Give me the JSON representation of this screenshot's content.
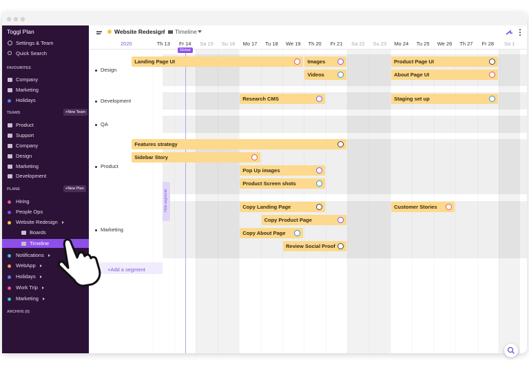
{
  "sidebar": {
    "app_title": "Toggl Plan",
    "settings": "Settings & Team",
    "search": "Quick Search",
    "favourites": {
      "heading": "FAVOURITES",
      "items": [
        {
          "label": "Company"
        },
        {
          "label": "Marketing"
        },
        {
          "label": "Holidays",
          "color": "#5b7ff0"
        }
      ]
    },
    "teams": {
      "heading": "TEAMS",
      "button": "+New Team",
      "items": [
        {
          "label": "Product"
        },
        {
          "label": "Support"
        },
        {
          "label": "Company"
        },
        {
          "label": "Design"
        },
        {
          "label": "Marketing"
        },
        {
          "label": "Development"
        }
      ]
    },
    "plans": {
      "heading": "PLANS",
      "button": "+New Plan",
      "items": [
        {
          "label": "Hiring",
          "color": "#e8578c"
        },
        {
          "label": "People Ops",
          "color": "#8b4fe0"
        },
        {
          "label": "Website Redesign",
          "color": "#f6c64a"
        },
        {
          "label": "Boards"
        },
        {
          "label": "Timeline"
        },
        {
          "label": "Notifications",
          "color": "#2ec4cc"
        },
        {
          "label": "WebApp",
          "color": "#f59a4c"
        },
        {
          "label": "Holidays",
          "color": "#5b7ff0"
        },
        {
          "label": "Work Trip",
          "color": "#e8578c"
        },
        {
          "label": "Marketing",
          "color": "#2ec4cc"
        }
      ]
    },
    "archive": "ARCHIVE (0)"
  },
  "header": {
    "project": "Website Redesign",
    "separator": "/",
    "view": "Timeline"
  },
  "timeline": {
    "year": "2020",
    "days": [
      "Th 13",
      "Fr 14",
      "Sa 15",
      "Su 16",
      "Mo 17",
      "Tu 18",
      "We 19",
      "Th 20",
      "Fr 21",
      "Sa 22",
      "Su 23",
      "Mo 24",
      "Tu 25",
      "We 26",
      "Th 27",
      "Fr 28",
      "Sa 1"
    ],
    "global_label": "Global",
    "hide_segments": "Hide segments",
    "add_segment": "+Add a segment",
    "segments": [
      {
        "name": "Design",
        "tasks": [
          {
            "label": "Landing Page UI"
          },
          {
            "label": "Images"
          },
          {
            "label": "Videos"
          },
          {
            "label": "Product Page UI"
          },
          {
            "label": "About Page UI"
          }
        ]
      },
      {
        "name": "Development",
        "tasks": [
          {
            "label": "Research CMS"
          },
          {
            "label": "Staging set up"
          }
        ]
      },
      {
        "name": "QA",
        "tasks": []
      },
      {
        "name": "Product",
        "tasks": [
          {
            "label": "Features strategy"
          },
          {
            "label": "Sidebar Story"
          },
          {
            "label": "Pop Up images"
          },
          {
            "label": "Product Screen shots"
          }
        ]
      },
      {
        "name": "Marketing",
        "tasks": [
          {
            "label": "Copy Landing Page"
          },
          {
            "label": "Customer Stories"
          },
          {
            "label": "Copy Product Page"
          },
          {
            "label": "Copy About Page"
          },
          {
            "label": "Review Social Proof"
          }
        ]
      }
    ]
  }
}
